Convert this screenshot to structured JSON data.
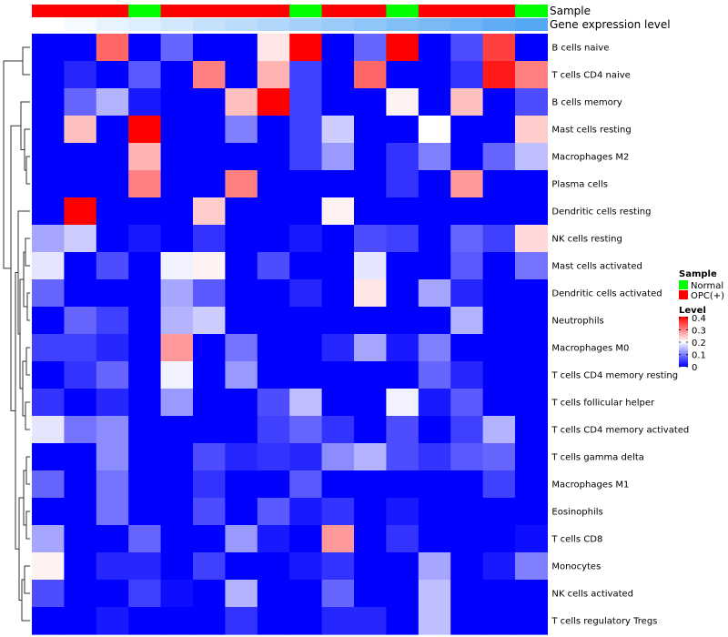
{
  "chart_data": {
    "type": "heatmap",
    "color_scale": {
      "min": 0,
      "max": 0.4,
      "stops": [
        "#0000ff",
        "#ffffff",
        "#ff0000"
      ]
    },
    "annotations": [
      {
        "name": "Sample",
        "values": [
          "OPC(+)",
          "OPC(+)",
          "OPC(+)",
          "Normal",
          "OPC(+)",
          "OPC(+)",
          "OPC(+)",
          "OPC(+)",
          "Normal",
          "OPC(+)",
          "OPC(+)",
          "Normal",
          "OPC(+)",
          "OPC(+)",
          "OPC(+)",
          "Normal"
        ]
      },
      {
        "name": "Gene expression level",
        "values": [
          0.0,
          0.03,
          0.07,
          0.1,
          0.13,
          0.17,
          0.2,
          0.23,
          0.27,
          0.3,
          0.33,
          0.37,
          0.4,
          0.43,
          0.47,
          0.5
        ]
      }
    ],
    "rows": [
      {
        "label": "B cells naive",
        "values": [
          0,
          0,
          0.32,
          0,
          0.08,
          0,
          0,
          0.22,
          0.4,
          0,
          0.08,
          0.4,
          0,
          0.06,
          0.35,
          0
        ]
      },
      {
        "label": "T cells CD4 naive",
        "values": [
          0,
          0.03,
          0,
          0.07,
          0,
          0.3,
          0,
          0.26,
          0.05,
          0,
          0.32,
          0,
          0,
          0.04,
          0.38,
          0.3
        ]
      },
      {
        "label": "B cells memory",
        "values": [
          0,
          0.08,
          0.14,
          0.02,
          0,
          0,
          0.25,
          0.4,
          0.05,
          0,
          0,
          0.21,
          0,
          0.25,
          0,
          0.06
        ]
      },
      {
        "label": "Mast cells resting",
        "values": [
          0,
          0.25,
          0,
          0.4,
          0,
          0,
          0.1,
          0,
          0.05,
          0.16,
          0,
          0,
          0.2,
          0,
          0,
          0.24
        ]
      },
      {
        "label": "Macrophages M2",
        "values": [
          0,
          0,
          0,
          0.26,
          0,
          0,
          0,
          0,
          0.05,
          0.12,
          0,
          0.04,
          0.1,
          0,
          0.08,
          0.15
        ]
      },
      {
        "label": "Plasma cells",
        "values": [
          0,
          0,
          0,
          0.3,
          0,
          0,
          0.3,
          0,
          0,
          0,
          0,
          0.04,
          0,
          0.28,
          0,
          0
        ]
      },
      {
        "label": "Dendritic cells resting",
        "values": [
          0,
          0.4,
          0,
          0,
          0,
          0.24,
          0,
          0,
          0,
          0.21,
          0,
          0,
          0,
          0,
          0,
          0
        ]
      },
      {
        "label": "NK cells resting",
        "values": [
          0.13,
          0.16,
          0,
          0.02,
          0,
          0.04,
          0,
          0,
          0.02,
          0,
          0.06,
          0.05,
          0,
          0.08,
          0.05,
          0.23
        ]
      },
      {
        "label": "Mast cells activated",
        "values": [
          0.18,
          0,
          0.06,
          0,
          0.19,
          0.21,
          0,
          0.06,
          0,
          0,
          0.18,
          0,
          0,
          0.07,
          0,
          0.09
        ]
      },
      {
        "label": "Dendritic cells activated",
        "values": [
          0.08,
          0,
          0,
          0,
          0.13,
          0.07,
          0,
          0,
          0.03,
          0,
          0.22,
          0,
          0.13,
          0.03,
          0,
          0
        ]
      },
      {
        "label": "Neutrophils",
        "values": [
          0,
          0.08,
          0.05,
          0,
          0.14,
          0.16,
          0,
          0,
          0,
          0,
          0,
          0,
          0,
          0.14,
          0,
          0
        ]
      },
      {
        "label": "Macrophages M0",
        "values": [
          0.05,
          0.05,
          0.03,
          0,
          0.28,
          0,
          0.09,
          0,
          0,
          0.03,
          0.13,
          0.02,
          0.1,
          0,
          0,
          0
        ]
      },
      {
        "label": "T cells CD4 memory resting",
        "values": [
          0,
          0.04,
          0.08,
          0,
          0.19,
          0,
          0.12,
          0,
          0,
          0,
          0,
          0,
          0.08,
          0.03,
          0,
          0
        ]
      },
      {
        "label": "T cells follicular helper",
        "values": [
          0.04,
          0,
          0.03,
          0,
          0.12,
          0,
          0,
          0.06,
          0.15,
          0,
          0,
          0.19,
          0.02,
          0.07,
          0,
          0
        ]
      },
      {
        "label": "T cells CD4 memory activated",
        "values": [
          0.18,
          0.09,
          0.11,
          0,
          0,
          0,
          0,
          0.05,
          0.08,
          0.04,
          0,
          0.06,
          0,
          0.05,
          0.14,
          0
        ]
      },
      {
        "label": "T cells gamma delta",
        "values": [
          0,
          0,
          0.11,
          0,
          0,
          0.06,
          0.03,
          0.04,
          0.03,
          0.11,
          0.14,
          0.06,
          0.04,
          0.07,
          0.08,
          0
        ]
      },
      {
        "label": "Macrophages M1",
        "values": [
          0.08,
          0,
          0.09,
          0,
          0,
          0.04,
          0,
          0,
          0.07,
          0,
          0,
          0,
          0,
          0,
          0.05,
          0
        ]
      },
      {
        "label": "Eosinophils",
        "values": [
          0,
          0,
          0.09,
          0,
          0,
          0.06,
          0,
          0.07,
          0.02,
          0.04,
          0,
          0.02,
          0,
          0,
          0,
          0
        ]
      },
      {
        "label": "T cells CD8",
        "values": [
          0.13,
          0,
          0,
          0.08,
          0,
          0,
          0.12,
          0.02,
          0,
          0.28,
          0,
          0.04,
          0,
          0,
          0,
          0.01
        ]
      },
      {
        "label": "Monocytes",
        "values": [
          0.21,
          0,
          0.03,
          0.03,
          0,
          0.05,
          0,
          0,
          0.02,
          0.04,
          0,
          0,
          0.13,
          0,
          0.02,
          0.1
        ]
      },
      {
        "label": "NK cells activated",
        "values": [
          0.06,
          0,
          0,
          0.05,
          0.01,
          0,
          0.14,
          0,
          0,
          0.08,
          0,
          0,
          0.15,
          0,
          0,
          0
        ]
      },
      {
        "label": "T cells regulatory  Tregs",
        "values": [
          0,
          0,
          0.02,
          0,
          0,
          0,
          0.04,
          0,
          0,
          0.03,
          0.03,
          0,
          0.15,
          0,
          0,
          0
        ]
      }
    ],
    "legend": {
      "sample_title": "Sample",
      "sample_entries": [
        {
          "label": "Normal",
          "color": "#00ff00"
        },
        {
          "label": "OPC(+)",
          "color": "#ff0000"
        }
      ],
      "level_title": "Level",
      "level_ticks": [
        "0.4",
        "0.3",
        "0.2",
        "0.1",
        "0"
      ]
    }
  }
}
